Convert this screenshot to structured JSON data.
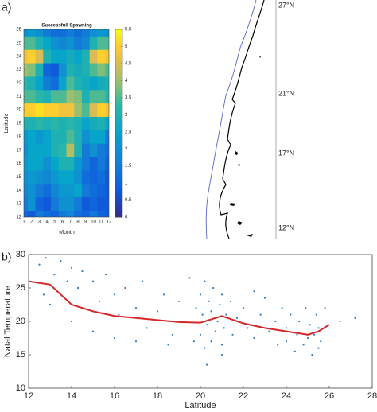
{
  "panel_labels": [
    "a)",
    "b)"
  ],
  "map_labels": [
    "27°N",
    "21°N",
    "17°N",
    "12°N"
  ],
  "chart_data": [
    {
      "type": "heatmap",
      "title": "Successfull Spawning",
      "xlabel": "Month",
      "ylabel": "Latitude",
      "colormap": "parula",
      "x": [
        1,
        2,
        3,
        4,
        5,
        6,
        7,
        8,
        9,
        10,
        11,
        12
      ],
      "y": [
        12,
        13,
        14,
        15,
        16,
        17,
        18,
        19,
        20,
        21,
        22,
        23,
        24,
        25,
        26
      ],
      "z": [
        [
          1.0,
          0.8,
          1.5,
          1.2,
          1.0,
          1.5,
          1.8,
          1.2,
          1.0,
          1.5,
          1.0,
          0.8
        ],
        [
          1.5,
          2.0,
          1.0,
          0.8,
          1.5,
          2.0,
          2.0,
          1.5,
          0.8,
          1.0,
          0.8,
          0.8
        ],
        [
          1.8,
          2.0,
          1.5,
          1.2,
          1.8,
          2.2,
          2.2,
          2.5,
          1.5,
          1.2,
          1.0,
          0.8
        ],
        [
          2.0,
          2.2,
          2.0,
          1.8,
          2.2,
          2.5,
          2.5,
          2.0,
          1.2,
          1.0,
          1.2,
          0.8
        ],
        [
          2.2,
          2.5,
          2.5,
          2.0,
          2.5,
          3.0,
          3.0,
          2.2,
          1.5,
          1.0,
          1.5,
          1.0
        ],
        [
          2.0,
          2.5,
          2.5,
          2.5,
          3.0,
          3.2,
          4.2,
          3.0,
          1.5,
          2.0,
          1.5,
          1.2
        ],
        [
          2.2,
          2.5,
          2.2,
          2.5,
          3.0,
          3.0,
          3.5,
          3.0,
          2.0,
          2.5,
          2.5,
          1.5
        ],
        [
          3.0,
          3.0,
          3.2,
          3.0,
          3.2,
          3.0,
          3.2,
          3.0,
          2.5,
          2.8,
          3.0,
          2.5
        ],
        [
          5.0,
          5.0,
          5.2,
          5.0,
          5.0,
          4.8,
          4.8,
          4.0,
          3.5,
          4.5,
          5.0,
          4.8
        ],
        [
          3.5,
          3.5,
          3.2,
          3.0,
          3.5,
          3.5,
          4.0,
          3.8,
          3.0,
          3.5,
          3.5,
          3.2
        ],
        [
          3.2,
          3.0,
          2.5,
          1.5,
          1.2,
          2.5,
          3.5,
          3.0,
          2.8,
          2.5,
          2.8,
          3.0
        ],
        [
          4.0,
          3.8,
          3.0,
          1.0,
          0.8,
          2.0,
          3.0,
          2.8,
          3.0,
          3.5,
          3.8,
          3.5
        ],
        [
          4.8,
          5.0,
          4.5,
          3.0,
          2.5,
          2.5,
          2.8,
          2.5,
          3.0,
          4.5,
          5.0,
          4.8
        ],
        [
          3.5,
          3.5,
          3.0,
          2.5,
          2.0,
          1.8,
          2.0,
          1.5,
          1.8,
          3.0,
          3.5,
          3.5
        ],
        [
          2.0,
          2.2,
          2.0,
          1.5,
          1.2,
          1.2,
          1.5,
          1.2,
          1.5,
          2.0,
          2.2,
          2.0
        ]
      ],
      "xlim": [
        1,
        12
      ],
      "xticks": [
        1,
        2,
        3,
        4,
        5,
        6,
        7,
        8,
        9,
        10,
        11,
        12
      ],
      "ylim": [
        12,
        26
      ],
      "yticks": [
        12,
        13,
        14,
        15,
        16,
        17,
        18,
        19,
        20,
        21,
        22,
        23,
        24,
        25,
        26
      ],
      "clim": [
        0,
        5.5
      ],
      "cticks": [
        0,
        0.5,
        1,
        1.5,
        2,
        2.5,
        3,
        3.5,
        4,
        4.5,
        5,
        5.5
      ]
    },
    {
      "type": "scatter",
      "xlabel": "Latitude",
      "ylabel": "Natal Temperature",
      "color": "#2a7fc1",
      "x": [
        12.5,
        12.8,
        13.2,
        13.5,
        13.8,
        14,
        14.3,
        14.5,
        15,
        15.3,
        15.6,
        16,
        16.2,
        16.5,
        17,
        17.3,
        17.5,
        18,
        18.3,
        18.7,
        19,
        19.3,
        19.7,
        12.7,
        13,
        14,
        15,
        16,
        17,
        18.5,
        19.8,
        20,
        20,
        20.1,
        20.2,
        20.2,
        20.3,
        20.4,
        20.5,
        20.5,
        20.6,
        20.7,
        20.8,
        20.9,
        21,
        21,
        21.1,
        21.2,
        21.4,
        21.5,
        21.7,
        22,
        22.2,
        22.5,
        22.8,
        23,
        23.2,
        23.5,
        23.6,
        23.8,
        24,
        24,
        24.2,
        24.4,
        24.5,
        24.6,
        24.8,
        24.9,
        25,
        25.1,
        25.2,
        25.3,
        25.4,
        25.5,
        25.5,
        25.6,
        25.8,
        26.5,
        27.2,
        20.3,
        21,
        19.5,
        22.5
      ],
      "y": [
        28.5,
        29.5,
        27,
        29,
        26,
        28,
        25,
        27.5,
        26,
        23,
        27,
        24,
        21,
        25,
        22,
        26,
        19,
        21.5,
        24,
        18,
        23,
        20,
        17,
        24,
        22.5,
        20,
        18.5,
        17.5,
        17,
        16.5,
        22,
        24,
        18,
        21,
        16,
        26,
        19.5,
        23,
        17,
        21.5,
        25,
        18.5,
        20,
        22.5,
        16.5,
        24,
        19,
        21,
        23,
        18,
        20.5,
        22,
        19,
        17.5,
        21,
        23.5,
        18.5,
        20,
        16.5,
        22,
        19,
        17,
        21,
        15.5,
        18,
        20,
        16.5,
        22,
        17.5,
        19.5,
        15,
        18,
        21,
        16,
        19,
        17,
        22,
        20,
        20.5,
        13.5,
        15,
        26.5,
        24.5
      ],
      "trend": {
        "color": "#d62728",
        "x": [
          12,
          13,
          14,
          15,
          16,
          17,
          18,
          19,
          20,
          21,
          22,
          23,
          24,
          25,
          25.5,
          26
        ],
        "y": [
          26,
          25.5,
          22.5,
          21.5,
          20.8,
          20.5,
          20.2,
          19.9,
          19.8,
          20.8,
          19.7,
          19.0,
          18.5,
          18.0,
          18.5,
          19.5
        ]
      },
      "xlim": [
        12,
        28
      ],
      "xticks": [
        12,
        14,
        16,
        18,
        20,
        22,
        24,
        26,
        28
      ],
      "ylim": [
        10,
        30
      ],
      "yticks": [
        10,
        15,
        20,
        25,
        30
      ]
    }
  ]
}
